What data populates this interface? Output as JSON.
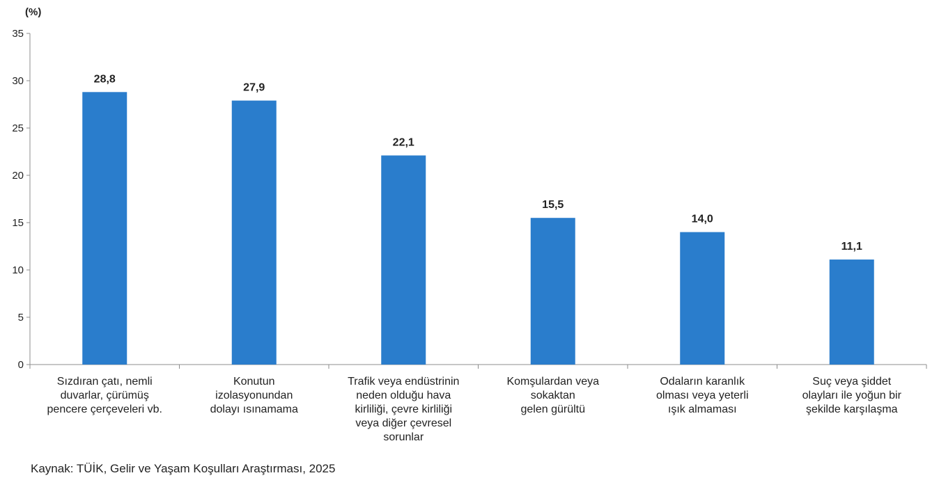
{
  "chart_data": {
    "type": "bar",
    "unit_label": "(%)",
    "categories": [
      [
        "Sızdıran çatı, nemli",
        "duvarlar, çürümüş",
        "pencere çerçeveleri vb."
      ],
      [
        "Konutun",
        "izolasyonundan",
        "dolayı ısınamama"
      ],
      [
        "Trafik veya endüstrinin",
        "neden olduğu hava",
        "kirliliği, çevre kirliliği",
        "veya diğer çevresel",
        "sorunlar"
      ],
      [
        "Komşulardan veya",
        "sokaktan",
        "gelen gürültü"
      ],
      [
        "Odaların karanlık",
        "olması veya yeterli",
        "ışık almaması"
      ],
      [
        "Suç veya şiddet",
        "olayları ile yoğun bir",
        "şekilde karşılaşma"
      ]
    ],
    "values": [
      28.8,
      27.9,
      22.1,
      15.5,
      14.0,
      11.1
    ],
    "value_labels": [
      "28,8",
      "27,9",
      "22,1",
      "15,5",
      "14,0",
      "11,1"
    ],
    "ylim": [
      0,
      35
    ],
    "yticks": [
      0,
      5,
      10,
      15,
      20,
      25,
      30,
      35
    ],
    "bar_color": "#2a7dcc",
    "grid": false,
    "legend": "none"
  },
  "source_text": "Kaynak: TÜİK, Gelir ve Yaşam Koşulları Araştırması, 2025"
}
